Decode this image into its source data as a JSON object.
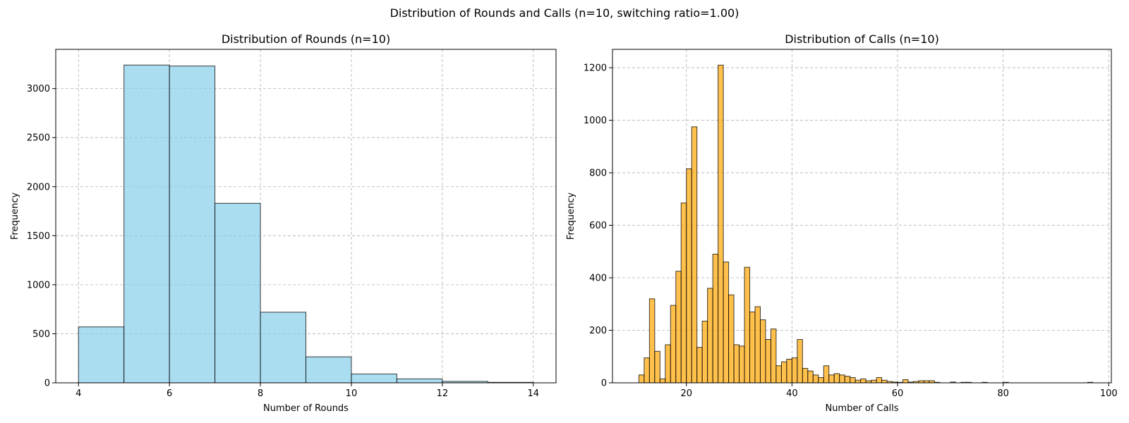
{
  "figure": {
    "suptitle": "Distribution of Rounds and Calls (n=10, switching ratio=1.00)"
  },
  "chart_data": [
    {
      "type": "bar",
      "title": "Distribution of Rounds (n=10)",
      "xlabel": "Number of Rounds",
      "ylabel": "Frequency",
      "xlim": [
        3.5,
        14.5
      ],
      "ylim": [
        0,
        3400
      ],
      "xticks": [
        4,
        6,
        8,
        10,
        12,
        14
      ],
      "yticks": [
        0,
        500,
        1000,
        1500,
        2000,
        2500,
        3000
      ],
      "grid": true,
      "color": "#87CEEB",
      "edge_color": "#000000",
      "bin_width": 1,
      "bins": [
        4,
        5,
        6,
        7,
        8,
        9,
        10,
        11,
        12,
        13
      ],
      "values": [
        570,
        3240,
        3230,
        1830,
        720,
        265,
        90,
        40,
        15,
        5
      ]
    },
    {
      "type": "bar",
      "title": "Distribution of Calls (n=10)",
      "xlabel": "Number of Calls",
      "ylabel": "Frequency",
      "xlim": [
        6,
        100.5
      ],
      "ylim": [
        0,
        1270
      ],
      "xticks": [
        20,
        40,
        60,
        80,
        100
      ],
      "yticks": [
        0,
        200,
        400,
        600,
        800,
        1000,
        1200
      ],
      "grid": true,
      "color": "#FFA500",
      "edge_color": "#000000",
      "bin_width": 1,
      "bins": [
        11,
        12,
        13,
        14,
        15,
        16,
        17,
        18,
        19,
        20,
        21,
        22,
        23,
        24,
        25,
        26,
        27,
        28,
        29,
        30,
        31,
        32,
        33,
        34,
        35,
        36,
        37,
        38,
        39,
        40,
        41,
        42,
        43,
        44,
        45,
        46,
        47,
        48,
        49,
        50,
        51,
        52,
        53,
        54,
        55,
        56,
        57,
        58,
        59,
        60,
        61,
        62,
        63,
        64,
        65,
        66,
        67,
        68,
        69,
        70,
        71,
        72,
        73,
        74,
        75,
        76,
        77,
        78,
        79,
        80,
        81,
        82,
        83,
        84,
        85,
        86,
        87,
        88,
        89,
        90,
        91,
        92,
        93,
        94,
        95,
        96
      ],
      "values": [
        30,
        95,
        320,
        120,
        15,
        145,
        295,
        425,
        685,
        815,
        975,
        135,
        235,
        360,
        490,
        1210,
        460,
        335,
        145,
        140,
        440,
        270,
        290,
        240,
        165,
        205,
        65,
        80,
        90,
        95,
        165,
        55,
        45,
        30,
        20,
        65,
        30,
        35,
        30,
        25,
        20,
        10,
        15,
        8,
        10,
        20,
        10,
        5,
        3,
        2,
        12,
        3,
        5,
        8,
        8,
        8,
        2,
        0,
        0,
        3,
        0,
        2,
        2,
        0,
        0,
        2,
        0,
        0,
        0,
        2,
        0,
        0,
        0,
        0,
        0,
        0,
        0,
        0,
        0,
        0,
        0,
        0,
        0,
        0,
        0,
        2
      ]
    }
  ]
}
